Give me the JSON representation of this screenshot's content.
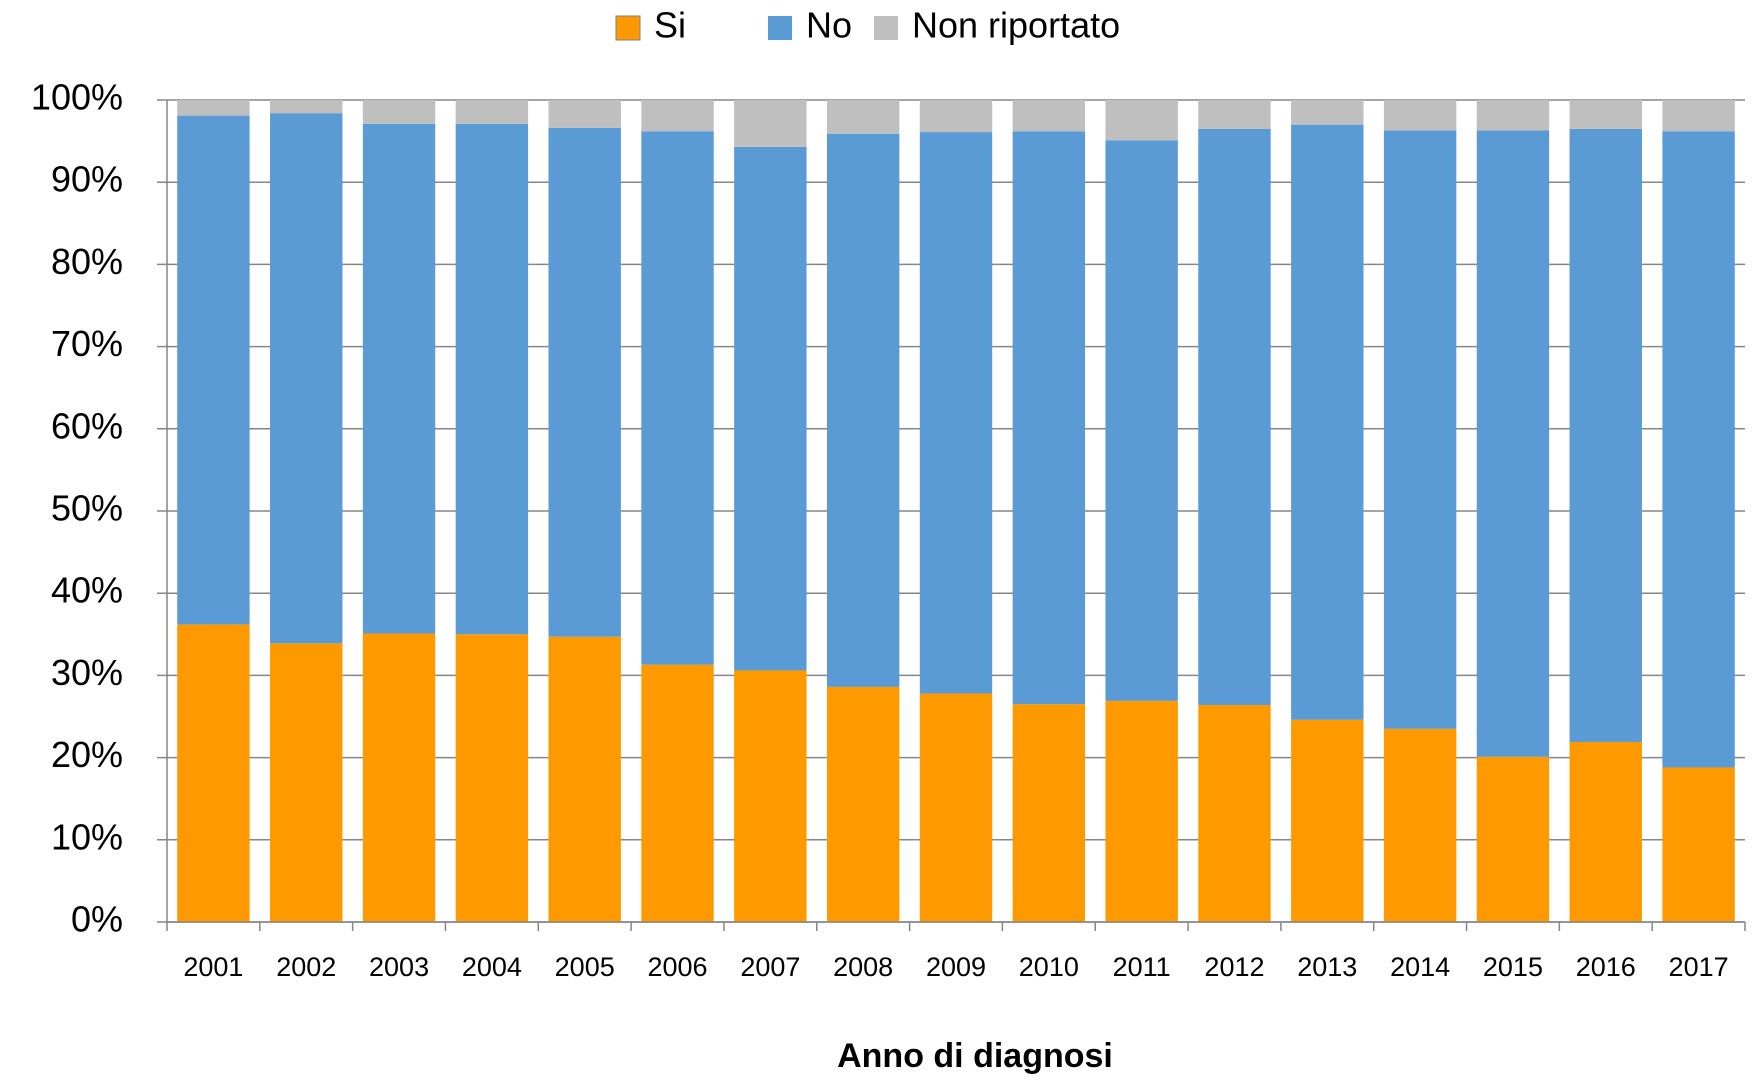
{
  "chart_data": {
    "type": "stacked-bar",
    "x_label": "Anno di diagnosi",
    "categories": [
      "2001",
      "2002",
      "2003",
      "2004",
      "2005",
      "2006",
      "2007",
      "2008",
      "2009",
      "2010",
      "2011",
      "2012",
      "2013",
      "2014",
      "2015",
      "2016",
      "2017"
    ],
    "series": [
      {
        "name": "Si",
        "color": "#ff9900",
        "values": [
          36.2,
          33.9,
          35.1,
          35.0,
          34.7,
          31.3,
          30.6,
          28.6,
          27.8,
          26.5,
          26.9,
          26.4,
          24.6,
          23.5,
          20.1,
          21.9,
          18.8
        ]
      },
      {
        "name": "No",
        "color": "#5b9bd5",
        "values": [
          61.9,
          64.5,
          62.0,
          62.1,
          61.9,
          64.9,
          63.7,
          67.3,
          68.3,
          69.7,
          68.2,
          70.1,
          72.4,
          72.8,
          76.2,
          74.6,
          77.4
        ]
      },
      {
        "name": "Non riportato",
        "color": "#bfbfbf",
        "values": [
          1.9,
          1.6,
          2.9,
          2.9,
          3.4,
          3.8,
          5.7,
          4.1,
          3.9,
          3.8,
          4.9,
          3.5,
          3.0,
          3.7,
          3.7,
          3.5,
          3.8
        ]
      }
    ],
    "ylim": [
      0,
      100
    ],
    "yticks": [
      {
        "value": 0,
        "label": "0%"
      },
      {
        "value": 10,
        "label": "10%"
      },
      {
        "value": 20,
        "label": "20%"
      },
      {
        "value": 30,
        "label": "30%"
      },
      {
        "value": 40,
        "label": "40%"
      },
      {
        "value": 50,
        "label": "50%"
      },
      {
        "value": 60,
        "label": "60%"
      },
      {
        "value": 70,
        "label": "70%"
      },
      {
        "value": 80,
        "label": "80%"
      },
      {
        "value": 90,
        "label": "90%"
      },
      {
        "value": 100,
        "label": "100%"
      }
    ],
    "grid": true,
    "legend": "top"
  }
}
